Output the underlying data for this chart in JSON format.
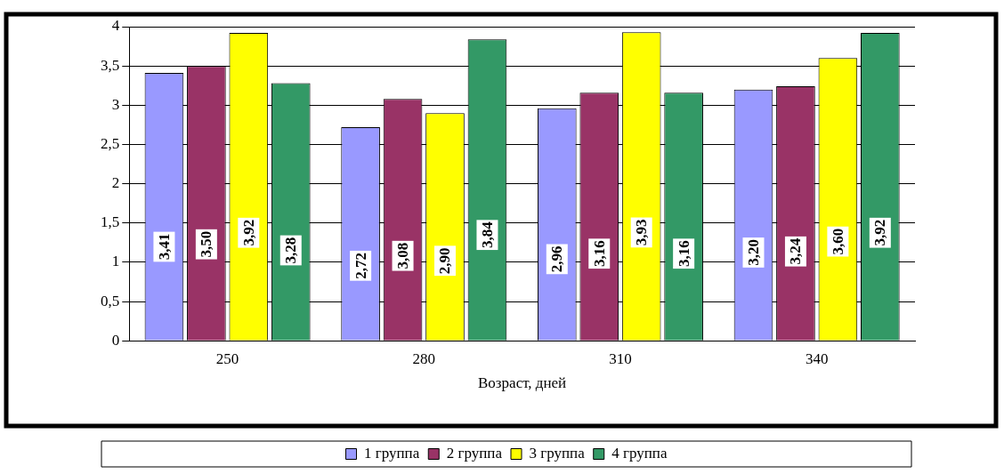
{
  "chart_data": {
    "type": "bar",
    "xlabel": "Возраст, дней",
    "categories": [
      "250",
      "280",
      "310",
      "340"
    ],
    "series": [
      {
        "name": "1 группа",
        "color": "#9999ff",
        "values": [
          3.41,
          2.72,
          2.96,
          3.2
        ],
        "value_labels": [
          "3,41",
          "2,72",
          "2,96",
          "3,20"
        ]
      },
      {
        "name": "2 группа",
        "color": "#993366",
        "values": [
          3.5,
          3.08,
          3.16,
          3.24
        ],
        "value_labels": [
          "3,50",
          "3,08",
          "3,16",
          "3,24"
        ]
      },
      {
        "name": "3 группа",
        "color": "#ffff00",
        "values": [
          3.92,
          2.9,
          3.93,
          3.6
        ],
        "value_labels": [
          "3,92",
          "2,90",
          "3,93",
          "3,60"
        ]
      },
      {
        "name": "4 группа",
        "color": "#339966",
        "values": [
          3.28,
          3.84,
          3.16,
          3.92
        ],
        "value_labels": [
          "3,28",
          "3,84",
          "3,16",
          "3,92"
        ]
      }
    ],
    "ylim": [
      0,
      4
    ],
    "yticks": [
      0,
      {
        "value": 0.5,
        "label": "0,5"
      },
      1,
      {
        "value": 1.5,
        "label": "1,5"
      },
      2,
      {
        "value": 2.5,
        "label": "2,5"
      },
      3,
      {
        "value": 3.5,
        "label": "3,5"
      },
      4
    ],
    "grid": "y",
    "legend": "bottom"
  }
}
